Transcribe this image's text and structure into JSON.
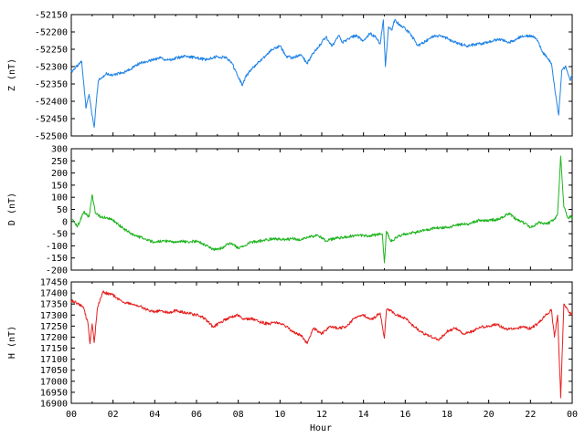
{
  "chart_data": [
    {
      "type": "line",
      "ylabel": "Z (nT)",
      "xlabel": "",
      "ylim": [
        -52500,
        -52150
      ],
      "yticks": [
        -52500,
        -52450,
        -52400,
        -52350,
        -52300,
        -52250,
        -52200,
        -52150
      ],
      "xlim": [
        0,
        24
      ],
      "series": [
        {
          "color": "#1e82e6",
          "x": [
            0.0,
            0.25,
            0.5,
            0.7,
            0.85,
            1.0,
            1.1,
            1.2,
            1.3,
            1.5,
            1.7,
            2.0,
            2.3,
            2.6,
            3.0,
            3.3,
            3.6,
            4.0,
            4.3,
            4.6,
            5.0,
            5.5,
            6.0,
            6.5,
            7.0,
            7.4,
            7.7,
            8.0,
            8.2,
            8.35,
            8.6,
            9.0,
            9.3,
            9.6,
            10.0,
            10.3,
            10.6,
            11.0,
            11.3,
            11.6,
            12.0,
            12.2,
            12.5,
            12.8,
            13.0,
            13.3,
            13.6,
            14.0,
            14.3,
            14.6,
            14.8,
            14.95,
            15.05,
            15.2,
            15.35,
            15.5,
            15.8,
            16.0,
            16.3,
            16.6,
            17.0,
            17.3,
            17.6,
            18.0,
            18.3,
            18.6,
            19.0,
            19.5,
            20.0,
            20.5,
            21.0,
            21.5,
            22.0,
            22.3,
            22.6,
            23.0,
            23.2,
            23.35,
            23.5,
            23.7,
            23.9,
            24.0
          ],
          "y": [
            -52315,
            -52300,
            -52285,
            -52420,
            -52380,
            -52440,
            -52475,
            -52400,
            -52340,
            -52330,
            -52320,
            -52325,
            -52320,
            -52315,
            -52300,
            -52290,
            -52285,
            -52280,
            -52275,
            -52282,
            -52275,
            -52270,
            -52275,
            -52280,
            -52270,
            -52275,
            -52290,
            -52330,
            -52355,
            -52330,
            -52310,
            -52285,
            -52270,
            -52250,
            -52240,
            -52270,
            -52275,
            -52265,
            -52290,
            -52260,
            -52230,
            -52215,
            -52240,
            -52210,
            -52230,
            -52220,
            -52210,
            -52225,
            -52205,
            -52215,
            -52235,
            -52165,
            -52300,
            -52185,
            -52195,
            -52165,
            -52185,
            -52190,
            -52210,
            -52240,
            -52225,
            -52215,
            -52210,
            -52218,
            -52228,
            -52235,
            -52240,
            -52235,
            -52230,
            -52220,
            -52230,
            -52215,
            -52210,
            -52220,
            -52260,
            -52290,
            -52380,
            -52440,
            -52310,
            -52300,
            -52340,
            -52325
          ]
        }
      ]
    },
    {
      "type": "line",
      "ylabel": "D (nT)",
      "xlabel": "",
      "ylim": [
        -200,
        300
      ],
      "yticks": [
        -200,
        -150,
        -100,
        -50,
        0,
        50,
        100,
        150,
        200,
        250,
        300
      ],
      "xlim": [
        0,
        24
      ],
      "series": [
        {
          "color": "#1eb41e",
          "x": [
            0.0,
            0.3,
            0.6,
            0.85,
            1.0,
            1.15,
            1.4,
            1.7,
            2.0,
            2.3,
            2.6,
            3.0,
            3.3,
            3.6,
            4.0,
            4.4,
            4.8,
            5.2,
            5.6,
            6.0,
            6.4,
            6.8,
            7.2,
            7.5,
            7.8,
            8.0,
            8.3,
            8.6,
            9.0,
            9.4,
            9.8,
            10.2,
            10.6,
            11.0,
            11.4,
            11.8,
            12.2,
            12.6,
            13.0,
            13.4,
            13.8,
            14.2,
            14.6,
            14.9,
            15.0,
            15.1,
            15.3,
            15.6,
            16.0,
            16.5,
            17.0,
            17.5,
            18.0,
            18.5,
            19.0,
            19.5,
            20.0,
            20.5,
            21.0,
            21.3,
            21.6,
            22.0,
            22.4,
            22.8,
            23.1,
            23.3,
            23.45,
            23.6,
            23.8,
            24.0
          ],
          "y": [
            10,
            -20,
            40,
            20,
            110,
            35,
            20,
            15,
            5,
            -15,
            -35,
            -55,
            -65,
            -75,
            -85,
            -80,
            -85,
            -80,
            -85,
            -80,
            -95,
            -115,
            -110,
            -90,
            -95,
            -110,
            -100,
            -85,
            -80,
            -75,
            -70,
            -75,
            -70,
            -75,
            -65,
            -55,
            -80,
            -70,
            -65,
            -60,
            -55,
            -60,
            -55,
            -50,
            -170,
            -40,
            -80,
            -65,
            -50,
            -45,
            -35,
            -25,
            -25,
            -15,
            -10,
            5,
            5,
            10,
            35,
            10,
            0,
            -25,
            -5,
            -10,
            5,
            30,
            270,
            60,
            15,
            20
          ]
        }
      ]
    },
    {
      "type": "line",
      "ylabel": "H (nT)",
      "xlabel": "Hour",
      "ylim": [
        16900,
        17450
      ],
      "yticks": [
        16900,
        16950,
        17000,
        17050,
        17100,
        17150,
        17200,
        17250,
        17300,
        17350,
        17400,
        17450
      ],
      "xlim": [
        0,
        24
      ],
      "xticks": [
        "00",
        "02",
        "04",
        "06",
        "08",
        "10",
        "12",
        "14",
        "16",
        "18",
        "20",
        "22",
        "00"
      ],
      "series": [
        {
          "color": "#e61e1e",
          "x": [
            0.0,
            0.3,
            0.6,
            0.8,
            0.9,
            1.0,
            1.1,
            1.25,
            1.5,
            1.8,
            2.0,
            2.3,
            2.6,
            3.0,
            3.3,
            3.6,
            4.0,
            4.3,
            4.7,
            5.0,
            5.5,
            6.0,
            6.4,
            6.8,
            7.2,
            7.6,
            8.0,
            8.3,
            8.6,
            9.0,
            9.4,
            9.8,
            10.2,
            10.6,
            11.0,
            11.3,
            11.6,
            12.0,
            12.4,
            12.8,
            13.2,
            13.6,
            14.0,
            14.4,
            14.8,
            15.0,
            15.1,
            15.3,
            15.6,
            16.0,
            16.4,
            16.8,
            17.2,
            17.6,
            18.0,
            18.4,
            18.8,
            19.2,
            19.6,
            20.0,
            20.4,
            20.8,
            21.2,
            21.6,
            22.0,
            22.4,
            22.8,
            23.0,
            23.15,
            23.3,
            23.45,
            23.6,
            23.8,
            24.0
          ],
          "y": [
            17365,
            17355,
            17330,
            17260,
            17170,
            17260,
            17175,
            17330,
            17405,
            17395,
            17390,
            17370,
            17355,
            17350,
            17340,
            17325,
            17315,
            17320,
            17310,
            17320,
            17310,
            17300,
            17285,
            17245,
            17270,
            17290,
            17300,
            17280,
            17285,
            17270,
            17260,
            17265,
            17255,
            17225,
            17210,
            17170,
            17240,
            17215,
            17250,
            17240,
            17250,
            17290,
            17300,
            17280,
            17310,
            17195,
            17325,
            17320,
            17300,
            17285,
            17250,
            17220,
            17205,
            17185,
            17225,
            17240,
            17215,
            17225,
            17245,
            17250,
            17260,
            17235,
            17235,
            17245,
            17240,
            17265,
            17305,
            17325,
            17200,
            17300,
            16925,
            17350,
            17320,
            17300
          ]
        }
      ]
    }
  ]
}
